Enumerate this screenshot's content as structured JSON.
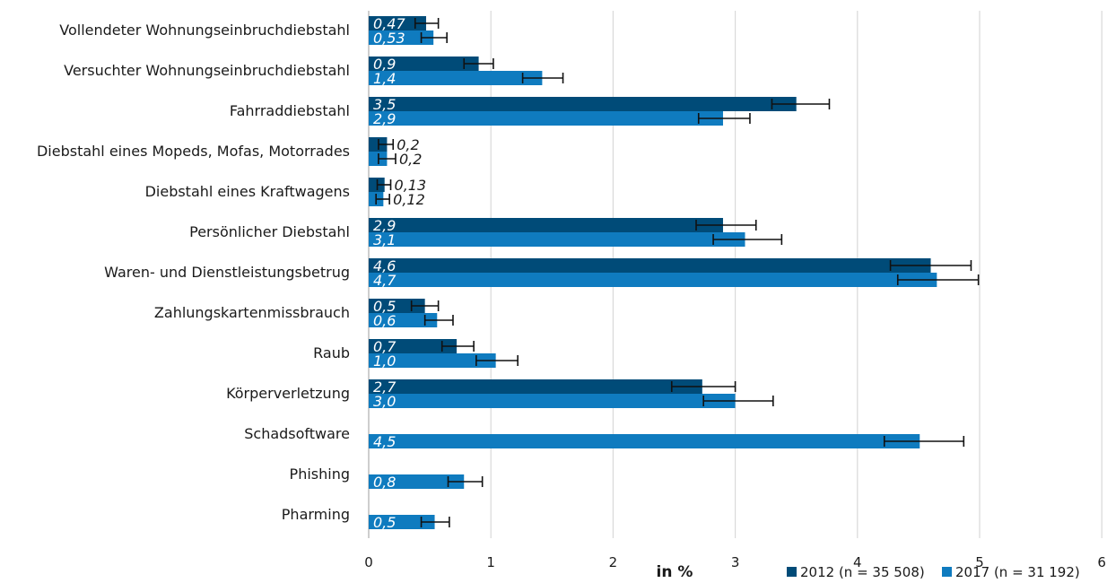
{
  "chart_data": {
    "type": "bar",
    "orientation": "horizontal",
    "categories": [
      "Vollendeter Wohnungseinbruchdiebstahl",
      "Versuchter Wohnungseinbruchdiebstahl",
      "Fahrraddiebstahl",
      "Diebstahl eines Mopeds, Mofas, Motorrades",
      "Diebstahl eines Kraftwagens",
      "Persönlicher Diebstahl",
      "Waren- und Dienstleistungsbetrug",
      "Zahlungskartenmissbrauch",
      "Raub",
      "Körperverletzung",
      "Schadsoftware",
      "Phishing",
      "Pharming"
    ],
    "series": [
      {
        "name": "2012 (n = 35 508)",
        "color": "#004b78",
        "values": [
          0.47,
          0.9,
          3.5,
          0.15,
          0.13,
          2.9,
          4.6,
          0.46,
          0.72,
          2.73,
          null,
          null,
          null
        ],
        "labels": [
          "0,47",
          "0,9",
          "3,5",
          "0,2",
          "0,13",
          "2,9",
          "4,6",
          "0,5",
          "0,7",
          "2,7",
          null,
          null,
          null
        ],
        "error_low": [
          0.38,
          0.78,
          3.3,
          0.08,
          0.07,
          2.68,
          4.27,
          0.35,
          0.6,
          2.48,
          null,
          null,
          null
        ],
        "error_high": [
          0.57,
          1.02,
          3.77,
          0.2,
          0.18,
          3.17,
          4.93,
          0.57,
          0.86,
          3.0,
          null,
          null,
          null
        ]
      },
      {
        "name": "2017 (n = 31 192)",
        "color": "#0f7bbf",
        "values": [
          0.53,
          1.42,
          2.9,
          0.15,
          0.12,
          3.08,
          4.65,
          0.56,
          1.04,
          3.0,
          4.51,
          0.78,
          0.54
        ],
        "labels": [
          "0,53",
          "1,4",
          "2,9",
          "0,2",
          "0,12",
          "3,1",
          "4,7",
          "0,6",
          "1,0",
          "3,0",
          "4,5",
          "0,8",
          "0,5"
        ],
        "error_low": [
          0.43,
          1.26,
          2.7,
          0.08,
          0.06,
          2.82,
          4.33,
          0.46,
          0.88,
          2.74,
          4.22,
          0.65,
          0.43
        ],
        "error_high": [
          0.64,
          1.59,
          3.12,
          0.22,
          0.17,
          3.38,
          4.99,
          0.69,
          1.22,
          3.31,
          4.87,
          0.93,
          0.66
        ]
      }
    ],
    "value_label_outside": [
      false,
      false,
      false,
      true,
      true,
      false,
      false,
      false,
      false,
      false,
      false,
      false,
      false
    ],
    "xlabel": "in %",
    "xlim": [
      0,
      6
    ],
    "xticks": [
      0,
      1,
      2,
      3,
      4,
      5,
      6
    ],
    "grid": true,
    "legend": "bottom-right"
  }
}
